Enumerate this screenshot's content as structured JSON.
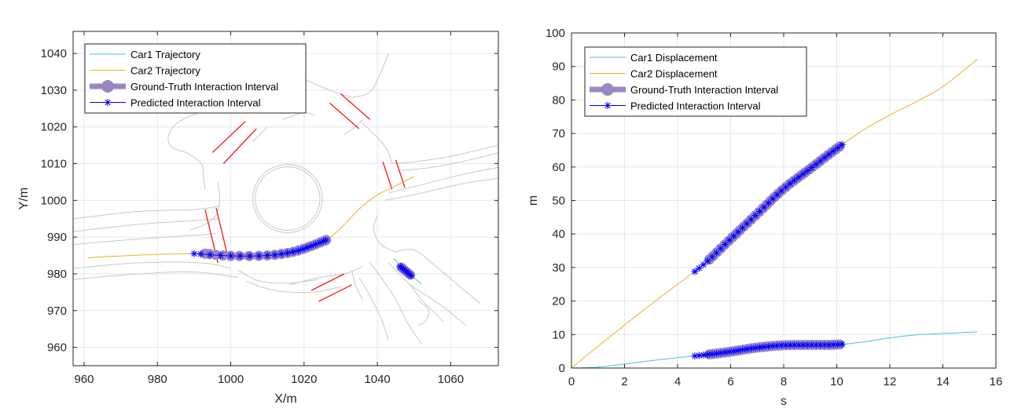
{
  "chart_data": [
    {
      "type": "line",
      "xlabel": "X/m",
      "ylabel": "Y/m",
      "xlim": [
        957,
        1073
      ],
      "ylim": [
        955,
        1046
      ],
      "xticks": [
        960,
        980,
        1000,
        1020,
        1040,
        1060
      ],
      "yticks": [
        960,
        970,
        980,
        990,
        1000,
        1010,
        1020,
        1030,
        1040
      ],
      "grid": true,
      "legend_position": "top-left",
      "series": [
        {
          "name": "Car1 Trajectory",
          "color": "#4DBEEE",
          "points": [
            [
              1044.5,
              984.2
            ],
            [
              1047,
              981.5
            ],
            [
              1049.5,
              979.3
            ],
            [
              1052.0,
              977.3
            ]
          ]
        },
        {
          "name": "Car2 Trajectory",
          "color": "#EDB120",
          "points": [
            [
              961,
              984.4
            ],
            [
              975,
              985.1
            ],
            [
              990,
              985.5
            ],
            [
              1000,
              984.9
            ],
            [
              1010,
              985.0
            ],
            [
              1017,
              986.0
            ],
            [
              1022,
              987.6
            ],
            [
              1026,
              989.2
            ],
            [
              1029,
              991.5
            ],
            [
              1032,
              994.5
            ],
            [
              1036,
              998.5
            ],
            [
              1040,
              1001.5
            ],
            [
              1045,
              1004
            ],
            [
              1050,
              1006.5
            ]
          ]
        },
        {
          "name": "Ground-Truth Interaction Interval",
          "color": "#9B86C2",
          "points": [
            [
              993,
              985.5
            ],
            [
              1000,
              984.9
            ],
            [
              1010,
              985.0
            ],
            [
              1017,
              986.0
            ],
            [
              1022,
              987.6
            ],
            [
              1026,
              989.2
            ]
          ]
        },
        {
          "name": "Predicted Interaction Interval",
          "color": "#0000FF",
          "points": [
            [
              990,
              985.5
            ],
            [
              1000,
              984.9
            ],
            [
              1010,
              985.0
            ],
            [
              1017,
              986.0
            ],
            [
              1022,
              987.6
            ],
            [
              1026,
              989.2
            ]
          ]
        }
      ],
      "car1_interval": {
        "gt": [
          [
            1046.5,
            981.8
          ],
          [
            1049.0,
            979.7
          ]
        ],
        "pred": [
          [
            1046.3,
            982.0
          ],
          [
            1049.2,
            979.5
          ]
        ]
      },
      "map_colors": {
        "lanes": "#C8C8C8",
        "crosswalks": "#FF0000"
      }
    },
    {
      "type": "line",
      "xlabel": "s",
      "ylabel": "m",
      "xlim": [
        0,
        16
      ],
      "ylim": [
        0,
        100
      ],
      "xticks": [
        0,
        2,
        4,
        6,
        8,
        10,
        12,
        14,
        16
      ],
      "yticks": [
        0,
        10,
        20,
        30,
        40,
        50,
        60,
        70,
        80,
        90,
        100
      ],
      "grid": true,
      "legend_position": "top-left",
      "series": [
        {
          "name": "Car1 Displacement",
          "color": "#4DBEEE",
          "points": [
            [
              0,
              0
            ],
            [
              1,
              0.3
            ],
            [
              2,
              1.2
            ],
            [
              3,
              2.2
            ],
            [
              4,
              3.1
            ],
            [
              5,
              3.9
            ],
            [
              6,
              4.9
            ],
            [
              7,
              6.1
            ],
            [
              8,
              6.8
            ],
            [
              9,
              6.9
            ],
            [
              10,
              7.0
            ],
            [
              11,
              7.8
            ],
            [
              12,
              9.0
            ],
            [
              13,
              9.9
            ],
            [
              14,
              10.3
            ],
            [
              15.3,
              10.8
            ]
          ]
        },
        {
          "name": "Car2 Displacement",
          "color": "#EDB120",
          "points": [
            [
              0,
              0
            ],
            [
              1,
              6.5
            ],
            [
              2,
              12.8
            ],
            [
              3,
              19.0
            ],
            [
              4,
              25.0
            ],
            [
              5,
              31.0
            ],
            [
              6,
              38.5
            ],
            [
              7,
              46.0
            ],
            [
              8,
              53.5
            ],
            [
              9,
              59.5
            ],
            [
              10,
              65.5
            ],
            [
              11,
              71.0
            ],
            [
              12,
              75.5
            ],
            [
              13,
              79.5
            ],
            [
              14,
              84.0
            ],
            [
              15.3,
              92.2
            ]
          ]
        },
        {
          "name": "Ground-Truth Interaction Interval",
          "color": "#9B86C2",
          "car1_t": [
            5.2,
            10.1
          ],
          "car2_t": [
            5.2,
            10.1
          ]
        },
        {
          "name": "Predicted Interaction Interval",
          "color": "#0000FF",
          "car1_t": [
            4.65,
            10.2
          ],
          "car2_t": [
            4.65,
            10.2
          ]
        }
      ]
    }
  ]
}
